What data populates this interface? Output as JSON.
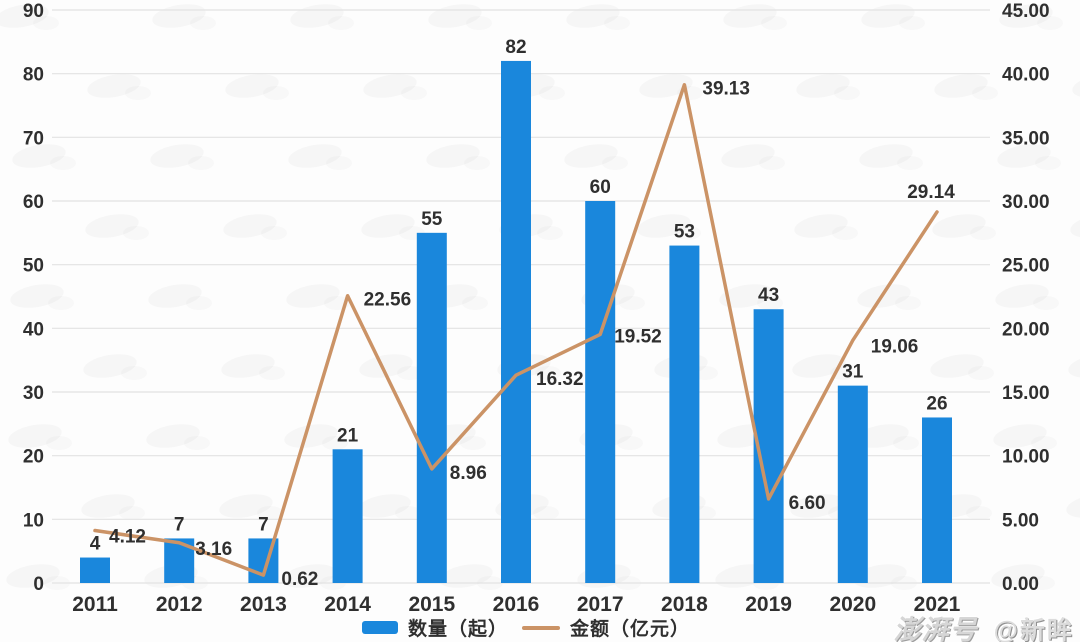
{
  "chart_data": {
    "type": "bar",
    "subtype": "combo-bar-line",
    "categories": [
      "2011",
      "2012",
      "2013",
      "2014",
      "2015",
      "2016",
      "2017",
      "2018",
      "2019",
      "2020",
      "2021"
    ],
    "series": [
      {
        "name": "数量（起）",
        "type": "bar",
        "axis": "left",
        "color": "#1a87dc",
        "values": [
          4,
          7,
          7,
          21,
          55,
          82,
          60,
          53,
          43,
          31,
          26
        ],
        "labels": [
          "4",
          "7",
          "7",
          "21",
          "55",
          "82",
          "60",
          "53",
          "43",
          "31",
          "26"
        ]
      },
      {
        "name": "金额（亿元）",
        "type": "line",
        "axis": "right",
        "color": "#cb9366",
        "values": [
          4.12,
          3.16,
          0.62,
          22.56,
          8.96,
          16.32,
          19.52,
          39.13,
          6.6,
          19.06,
          29.14
        ],
        "labels": [
          "4.12",
          "3.16",
          "0.62",
          "22.56",
          "8.96",
          "16.32",
          "19.52",
          "39.13",
          "6.60",
          "19.06",
          "29.14"
        ]
      }
    ],
    "left_axis": {
      "min": 0,
      "max": 90,
      "step": 10,
      "ticks": [
        "90",
        "80",
        "70",
        "60",
        "50",
        "40",
        "30",
        "20",
        "10",
        "0"
      ]
    },
    "right_axis": {
      "min": 0,
      "max": 45,
      "step": 5,
      "ticks": [
        "45.00",
        "40.00",
        "35.00",
        "30.00",
        "25.00",
        "20.00",
        "15.00",
        "10.00",
        "5.00",
        "0.00"
      ]
    },
    "title": "",
    "xlabel": "",
    "ylabel_left": "",
    "ylabel_right": "",
    "grid": "horizontal",
    "legend_position": "bottom",
    "gridline_color": "#e3e3e3",
    "text_color": "#2f2f2f"
  },
  "legend": {
    "bar_label": "数量（起）",
    "line_label": "金额（亿元）"
  },
  "watermark": {
    "brand": "澎湃号",
    "account": "@新眸"
  }
}
